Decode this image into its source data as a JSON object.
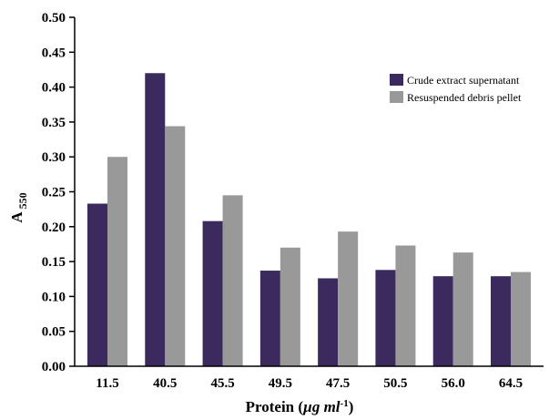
{
  "chart_data": {
    "type": "bar",
    "categories": [
      "11.5",
      "40.5",
      "45.5",
      "49.5",
      "47.5",
      "50.5",
      "56.0",
      "64.5"
    ],
    "series": [
      {
        "name": "Crude extract supernatant",
        "color": "#3b2a5e",
        "values": [
          0.233,
          0.42,
          0.208,
          0.137,
          0.126,
          0.138,
          0.129,
          0.129
        ]
      },
      {
        "name": "Resuspended debris pellet",
        "color": "#999999",
        "values": [
          0.3,
          0.344,
          0.245,
          0.17,
          0.193,
          0.173,
          0.163,
          0.135
        ]
      }
    ],
    "ylim": [
      0,
      0.5
    ],
    "yticks": [
      "0.00",
      "0.05",
      "0.10",
      "0.15",
      "0.20",
      "0.25",
      "0.30",
      "0.35",
      "0.40",
      "0.45",
      "0.50"
    ],
    "ylabel": {
      "main": "A",
      "sub": "550"
    },
    "xlabel": {
      "prefix": "Protein (",
      "unit": "µg ml",
      "sup": "-1",
      "suffix": ")"
    },
    "legend_position": "top-right",
    "grid": false
  }
}
